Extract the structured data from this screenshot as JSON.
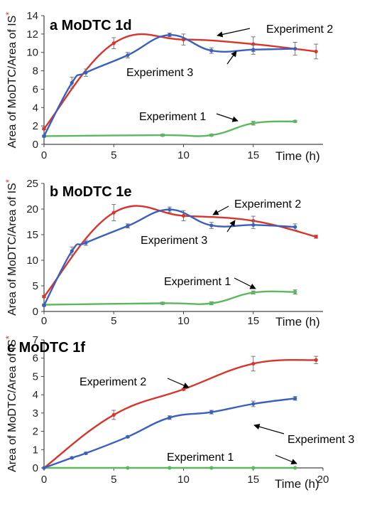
{
  "chart_data": [
    {
      "type": "line",
      "title": "a MoDTC 1d",
      "xlabel": "Time (h)",
      "ylabel": "Area of MoDTC/Area of IS",
      "ylabel_mark": "*",
      "xlim": [
        0,
        20
      ],
      "ylim": [
        0,
        14
      ],
      "xticks": [
        0,
        5,
        10,
        15
      ],
      "yticks": [
        0,
        2,
        4,
        6,
        8,
        10,
        12,
        14
      ],
      "series": [
        {
          "name": "Experiment 1",
          "color": "#5cb85c",
          "x": [
            0,
            8.5,
            12,
            15,
            18
          ],
          "y": [
            0.9,
            1.0,
            1.0,
            2.3,
            2.5
          ],
          "err": [
            0.1,
            0.1,
            0.1,
            0.2,
            0.1
          ]
        },
        {
          "name": "Experiment 2",
          "color": "#d9342b",
          "x": [
            0,
            5,
            10,
            15,
            19.5
          ],
          "y": [
            1.7,
            11.0,
            11.4,
            10.9,
            10.1
          ],
          "err": [
            0.1,
            0.6,
            0.6,
            0.8,
            0.8
          ]
        },
        {
          "name": "Experiment 3",
          "color": "#3a5fbf",
          "x": [
            0,
            2,
            3,
            6,
            9,
            12,
            15,
            18
          ],
          "y": [
            0.9,
            6.7,
            7.8,
            9.7,
            11.9,
            10.2,
            10.3,
            10.4
          ],
          "err": [
            0.1,
            0.6,
            0.4,
            0.3,
            0.2,
            0.3,
            0.5,
            0.7
          ]
        }
      ],
      "annotations": [
        "Experiment 2",
        "Experiment 3",
        "Experiment 1"
      ]
    },
    {
      "type": "line",
      "title": "b MoDTC 1e",
      "xlabel": "Time (h)",
      "ylabel": "Area of MoDTC/Area of IS",
      "ylabel_mark": "*",
      "xlim": [
        0,
        20
      ],
      "ylim": [
        0,
        25
      ],
      "xticks": [
        0,
        5,
        10,
        15
      ],
      "yticks": [
        0,
        5,
        10,
        15,
        20,
        25
      ],
      "series": [
        {
          "name": "Experiment 1",
          "color": "#5cb85c",
          "x": [
            0,
            8.5,
            12,
            15,
            18
          ],
          "y": [
            1.3,
            1.6,
            1.6,
            3.7,
            3.8
          ],
          "err": [
            0.1,
            0.2,
            0.3,
            0.3,
            0.4
          ]
        },
        {
          "name": "Experiment 2",
          "color": "#d9342b",
          "x": [
            0,
            5,
            10,
            15,
            19.5
          ],
          "y": [
            2.9,
            19.3,
            18.7,
            17.7,
            14.6
          ],
          "err": [
            0.2,
            1.6,
            1.0,
            0.9,
            0.3
          ]
        },
        {
          "name": "Experiment 3",
          "color": "#3a5fbf",
          "x": [
            0,
            2,
            3,
            6,
            9,
            12,
            15,
            18
          ],
          "y": [
            1.2,
            11.8,
            13.4,
            16.7,
            19.9,
            16.8,
            16.9,
            16.5
          ],
          "err": [
            0.2,
            0.8,
            0.5,
            0.4,
            0.5,
            0.6,
            0.7,
            0.6
          ]
        }
      ],
      "annotations": [
        "Experiment 2",
        "Experiment 3",
        "Experiment 1"
      ]
    },
    {
      "type": "line",
      "title": "c MoDTC 1f",
      "xlabel": "Time (h)",
      "ylabel": "Area of MoDTC/Area of IS",
      "ylabel_mark": "*",
      "xlim": [
        0,
        20
      ],
      "ylim": [
        0,
        7
      ],
      "xticks": [
        0,
        5,
        10,
        15,
        20
      ],
      "yticks": [
        0,
        1,
        2,
        3,
        4,
        5,
        6,
        7
      ],
      "series": [
        {
          "name": "Experiment 1",
          "color": "#5cb85c",
          "x": [
            0,
            6,
            9,
            12,
            15,
            18
          ],
          "y": [
            0,
            0,
            0,
            0,
            0,
            0
          ],
          "err": [
            0,
            0,
            0,
            0,
            0,
            0
          ]
        },
        {
          "name": "Experiment 2",
          "color": "#d9342b",
          "x": [
            0,
            5,
            10,
            15,
            19.5
          ],
          "y": [
            0,
            2.9,
            4.3,
            5.7,
            5.9
          ],
          "err": [
            0,
            0.25,
            0.05,
            0.4,
            0.2
          ]
        },
        {
          "name": "Experiment 3",
          "color": "#3a5fbf",
          "x": [
            0,
            2,
            3,
            6,
            9,
            12,
            15,
            18
          ],
          "y": [
            0,
            0.55,
            0.8,
            1.7,
            2.75,
            3.05,
            3.5,
            3.8
          ],
          "err": [
            0,
            0.05,
            0.05,
            0.05,
            0.1,
            0.1,
            0.15,
            0.1
          ]
        }
      ],
      "annotations": [
        "Experiment 2",
        "Experiment 3",
        "Experiment 1"
      ]
    }
  ]
}
